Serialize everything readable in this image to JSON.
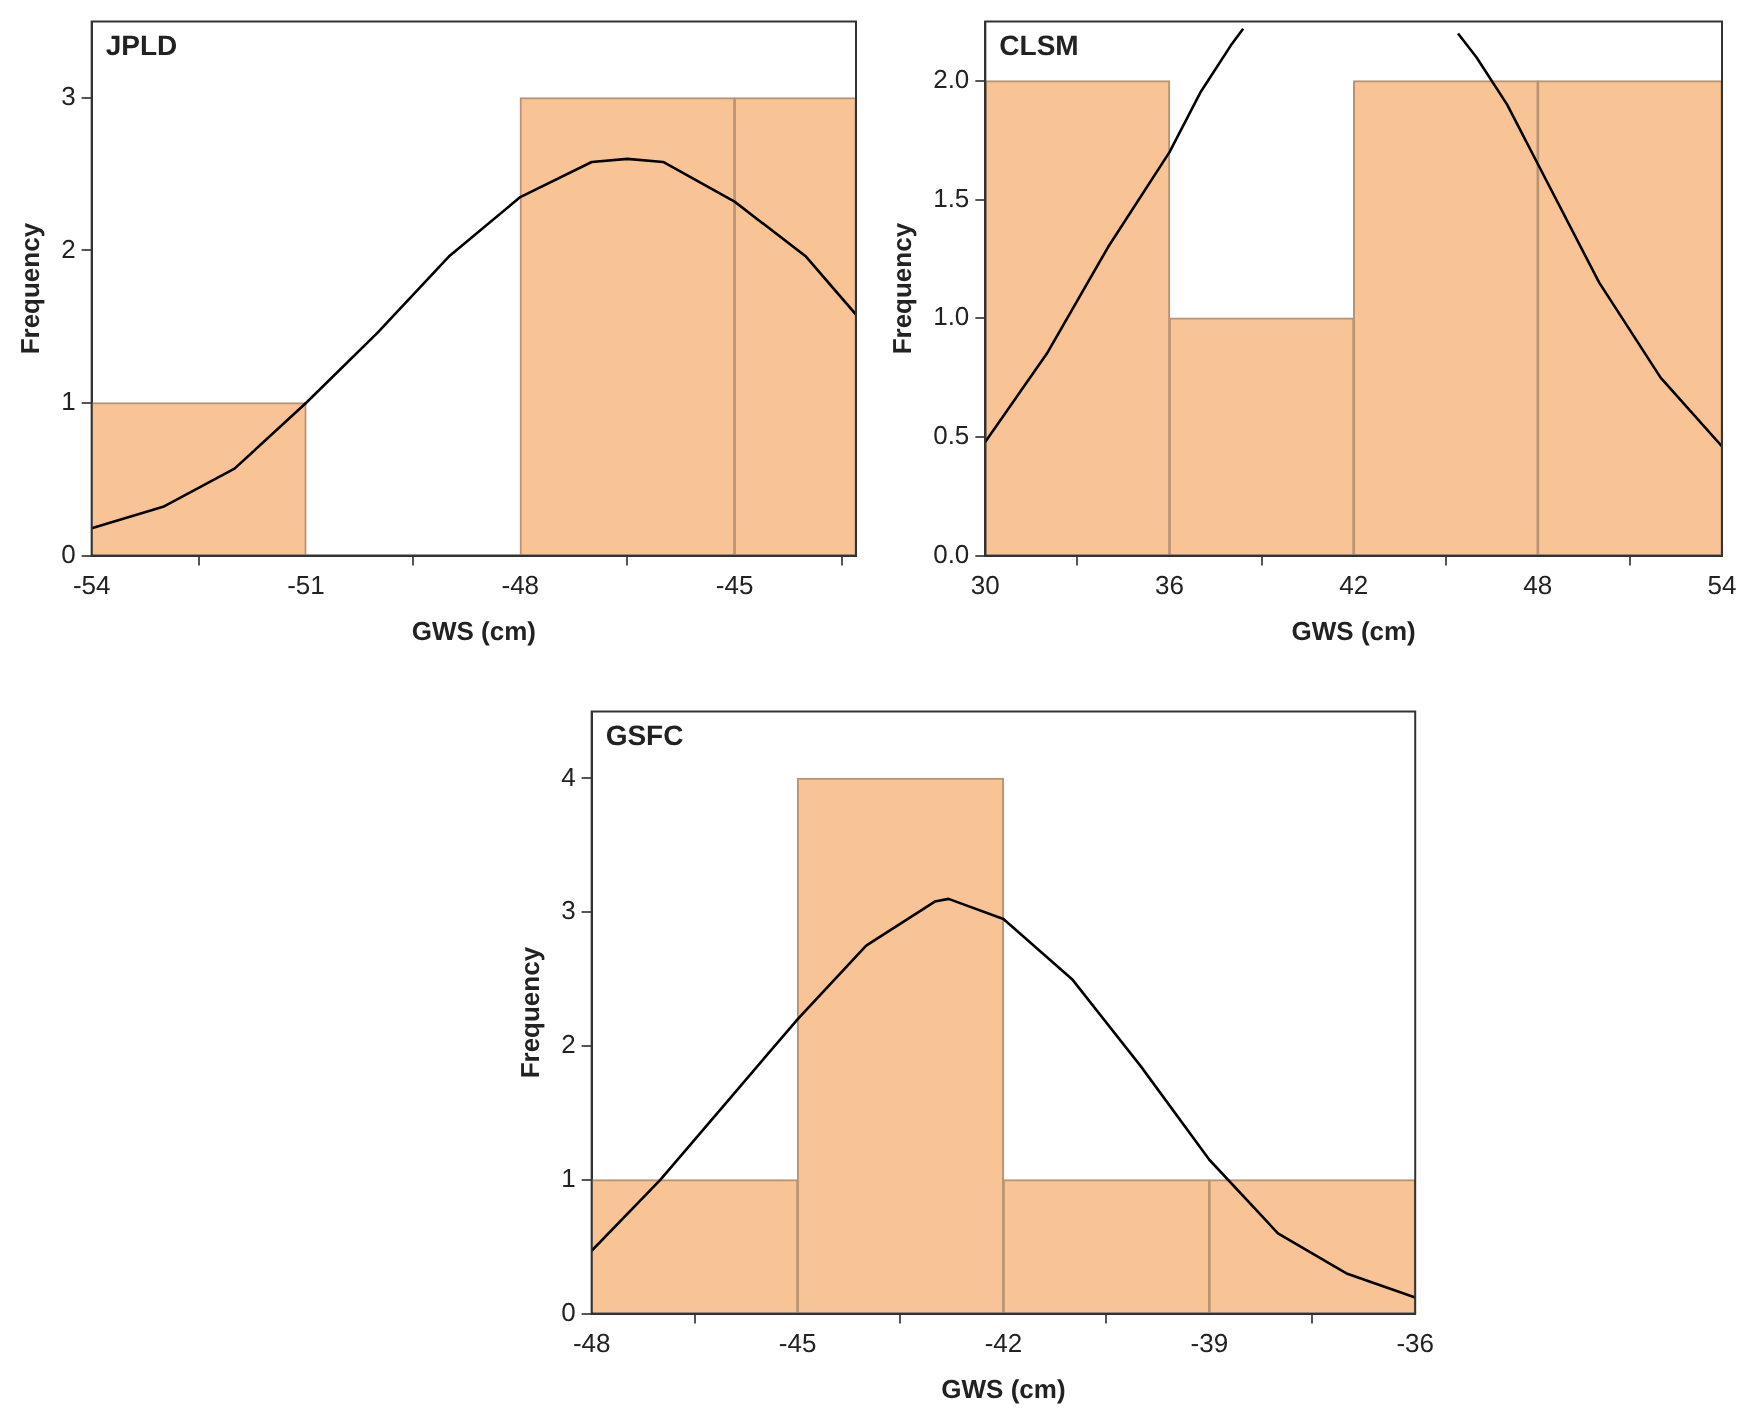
{
  "chart_data": [
    {
      "type": "histogram",
      "title": "JPLD",
      "xlabel": "GWS (cm)",
      "ylabel": "Frequency",
      "bins": [
        -54,
        -51,
        -48,
        -45,
        -43.3
      ],
      "values": [
        1,
        0,
        3,
        3
      ],
      "color": "#f8c496",
      "xlim": [
        -54,
        -43.3
      ],
      "ylim": [
        0,
        3.5
      ],
      "xticks": [
        -54,
        -51,
        -48,
        -45
      ],
      "yticks": [
        0,
        1,
        2,
        3
      ],
      "grid": false,
      "series": [
        {
          "type": "line",
          "color": "#000000",
          "x": [
            -54,
            -53,
            -52,
            -51,
            -50,
            -49,
            -48,
            -47,
            -46.5,
            -46,
            -45,
            -44,
            -43.3
          ],
          "values": [
            0.18,
            0.32,
            0.57,
            1.0,
            1.46,
            1.96,
            2.35,
            2.58,
            2.6,
            2.58,
            2.32,
            1.96,
            1.58
          ]
        }
      ]
    },
    {
      "type": "histogram",
      "title": "CLSM",
      "xlabel": "GWS (cm)",
      "ylabel": "Frequency",
      "bins": [
        30,
        36,
        42,
        48,
        54
      ],
      "values": [
        2,
        1,
        2,
        2
      ],
      "color": "#f8c496",
      "xlim": [
        30,
        54
      ],
      "ylim": [
        0,
        2.25
      ],
      "xticks": [
        30,
        36,
        42,
        48,
        54
      ],
      "yticks": [
        {
          "value": 0,
          "label": "0.0"
        },
        0.5,
        {
          "value": 1,
          "label": "1.0"
        },
        1.5,
        {
          "value": 2,
          "label": "2.0"
        }
      ],
      "grid": false,
      "series": [
        {
          "type": "line",
          "color": "#000000",
          "x": [
            30,
            32,
            34,
            36,
            37,
            38,
            38.4,
            42,
            45.4,
            46,
            47,
            48,
            50,
            52,
            54
          ],
          "values": [
            0.48,
            0.85,
            1.3,
            1.7,
            1.95,
            2.15,
            2.22,
            null,
            2.2,
            2.1,
            1.9,
            1.65,
            1.15,
            0.75,
            0.46
          ]
        }
      ]
    },
    {
      "type": "histogram",
      "title": "GSFC",
      "xlabel": "GWS (cm)",
      "ylabel": "Frequency",
      "bins": [
        -48,
        -45,
        -42,
        -39,
        -36
      ],
      "values": [
        1,
        4,
        1,
        1
      ],
      "color": "#f8c496",
      "xlim": [
        -48,
        -36
      ],
      "ylim": [
        0,
        4.5
      ],
      "xticks": [
        -48,
        -45,
        -42,
        -39,
        -36
      ],
      "yticks": [
        0,
        1,
        2,
        3,
        4
      ],
      "grid": false,
      "series": [
        {
          "type": "line",
          "color": "#000000",
          "x": [
            -48,
            -47,
            -46,
            -45,
            -44,
            -43,
            -42.8,
            -42,
            -41,
            -40,
            -39,
            -38,
            -37,
            -36
          ],
          "values": [
            0.47,
            1.0,
            1.6,
            2.2,
            2.75,
            3.08,
            3.1,
            2.95,
            2.5,
            1.85,
            1.15,
            0.6,
            0.3,
            0.12
          ]
        }
      ]
    }
  ]
}
